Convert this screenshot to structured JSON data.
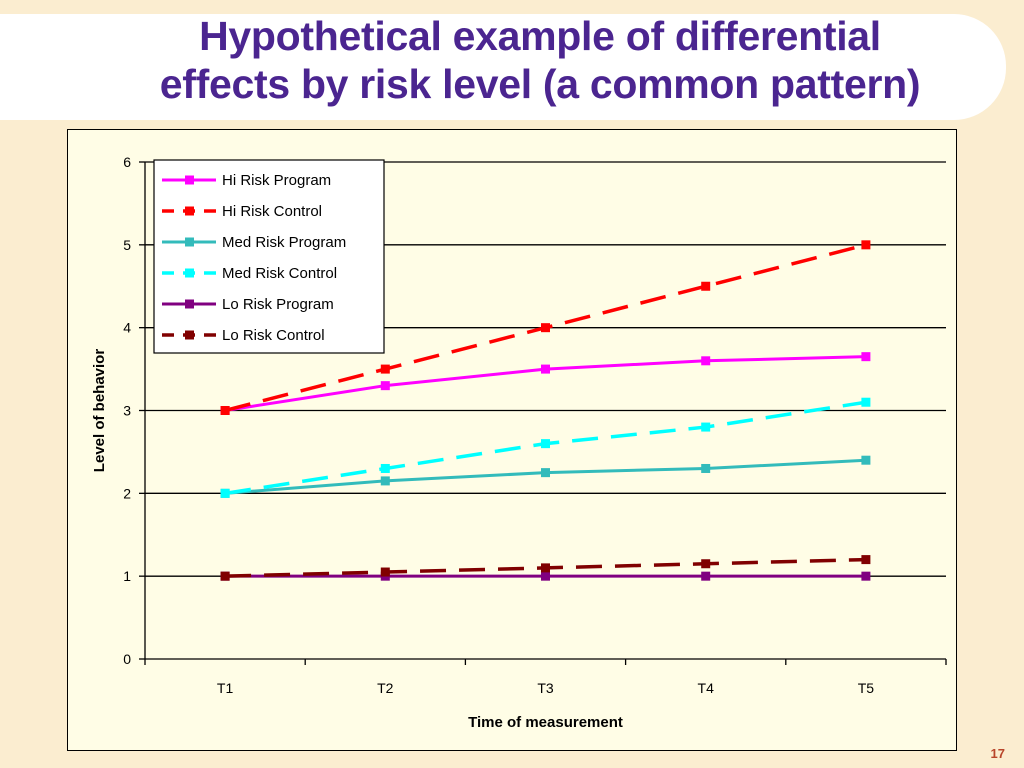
{
  "slide": {
    "title_line1": "Hypothetical example of differential",
    "title_line2": "effects by risk level (a common pattern)",
    "number": "17"
  },
  "chart_data": {
    "type": "line",
    "categories": [
      "T1",
      "T2",
      "T3",
      "T4",
      "T5"
    ],
    "xlabel": "Time of measurement",
    "ylabel": "Level of behavior",
    "ylim": [
      0,
      6
    ],
    "yticks": [
      0,
      1,
      2,
      3,
      4,
      5,
      6
    ],
    "grid": "horizontal",
    "legend": "top-left",
    "series": [
      {
        "name": "Hi Risk Program",
        "values": [
          3.0,
          3.3,
          3.5,
          3.6,
          3.65
        ],
        "color": "#ff00ff",
        "dashed": false
      },
      {
        "name": "Hi Risk Control",
        "values": [
          3.0,
          3.5,
          4.0,
          4.5,
          5.0
        ],
        "color": "#ff0000",
        "dashed": true
      },
      {
        "name": "Med Risk Program",
        "values": [
          2.0,
          2.15,
          2.25,
          2.3,
          2.4
        ],
        "color": "#33bbbb",
        "dashed": false
      },
      {
        "name": "Med Risk Control",
        "values": [
          2.0,
          2.3,
          2.6,
          2.8,
          3.1
        ],
        "color": "#00ffff",
        "dashed": true
      },
      {
        "name": "Lo Risk Program",
        "values": [
          1.0,
          1.0,
          1.0,
          1.0,
          1.0
        ],
        "color": "#800080",
        "dashed": false
      },
      {
        "name": "Lo Risk Control",
        "values": [
          1.0,
          1.05,
          1.1,
          1.15,
          1.2
        ],
        "color": "#800000",
        "dashed": true
      }
    ]
  }
}
